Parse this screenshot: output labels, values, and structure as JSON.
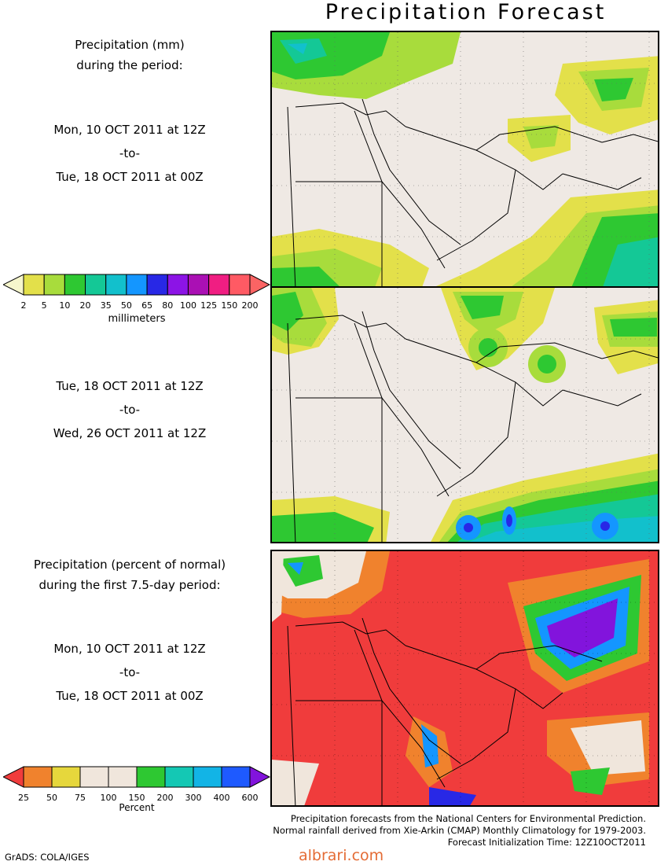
{
  "title": "Precipitation Forecast",
  "block1": {
    "line1": "Precipitation (mm)",
    "line2": "during the period:",
    "start": "Mon, 10 OCT 2011 at 12Z",
    "to": "-to-",
    "end": "Tue, 18 OCT 2011 at 00Z"
  },
  "colorbar_mm": {
    "colors": [
      "#f6f6cc",
      "#e3e04a",
      "#a8dc3c",
      "#2ec832",
      "#14c896",
      "#12c0cc",
      "#1496ff",
      "#2828e6",
      "#8c14e6",
      "#aa10b4",
      "#f01e82",
      "#ff5a64",
      "#fb6464"
    ],
    "ticks": [
      "2",
      "5",
      "10",
      "20",
      "35",
      "50",
      "65",
      "80",
      "100",
      "125",
      "150",
      "200"
    ],
    "label": "millimeters"
  },
  "block2": {
    "start": "Tue, 18 OCT 2011 at 12Z",
    "to": "-to-",
    "end": "Wed, 26 OCT 2011 at 12Z"
  },
  "block3": {
    "line1": "Precipitation (percent of normal)",
    "line2": "during the first 7.5-day period:",
    "start": "Mon, 10 OCT 2011 at 12Z",
    "to": "-to-",
    "end": "Tue, 18 OCT 2011 at 00Z"
  },
  "colorbar_pct": {
    "colors": [
      "#f03c3c",
      "#f0822d",
      "#e6d73c",
      "#f0e6dc",
      "#f0e6dc",
      "#2ec832",
      "#14c8b4",
      "#12b4e6",
      "#1e5aff",
      "#8214dc"
    ],
    "ticks": [
      "25",
      "50",
      "75",
      "100",
      "150",
      "200",
      "300",
      "400",
      "600"
    ],
    "label": "Percent"
  },
  "footer": {
    "line1": "Precipitation forecasts from the National Centers for Environmental Prediction.",
    "line2": "Normal rainfall derived from Xie-Arkin (CMAP) Monthly Climatology for 1979-2003.",
    "line3": "Forecast Initialization Time: 12Z10OCT2011"
  },
  "credit": "GrADS: COLA/IGES",
  "watermark": "albrari.com"
}
